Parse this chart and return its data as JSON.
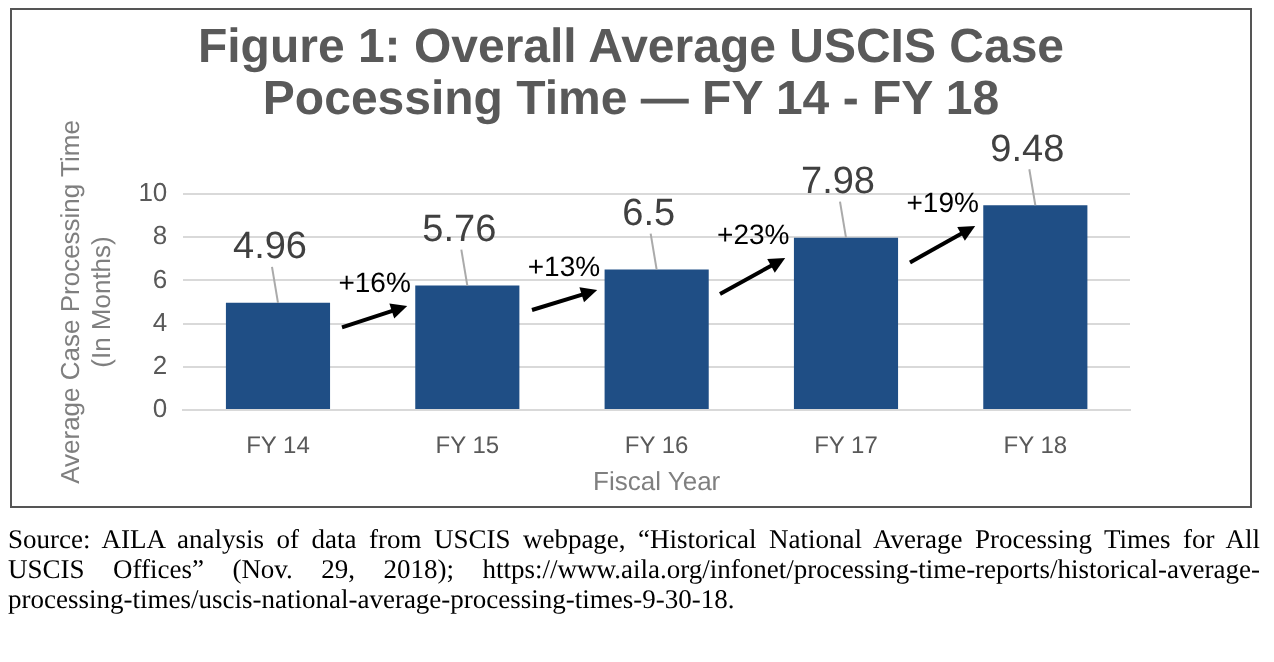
{
  "chart_data": {
    "type": "bar",
    "title": "Figure 1: Overall Average USCIS Case\nPocessing Time — FY 14 - FY 18",
    "xlabel": "Fiscal Year",
    "ylabel": "Average Case Processing Time\n(In Months)",
    "categories": [
      "FY 14",
      "FY 15",
      "FY 16",
      "FY 17",
      "FY 18"
    ],
    "values": [
      4.96,
      5.76,
      6.5,
      7.98,
      9.48
    ],
    "color": "#1f4e85",
    "ylim": [
      0,
      10
    ],
    "yticks": [
      0,
      2,
      4,
      6,
      8,
      10
    ],
    "grid": "y",
    "data_labels": true,
    "annotations": [
      "+16%",
      "+13%",
      "+23%",
      "+19%",
      "Source: AILA analysis of data from USCIS webpage, “Historical National Average Processing Times for All USCIS Offices” (Nov. 29, 2018); https://www.aila.org/infonet/processing-time-reports/historical-average-processing-times/uscis-national-average-processing-times-9-30-18."
    ]
  }
}
